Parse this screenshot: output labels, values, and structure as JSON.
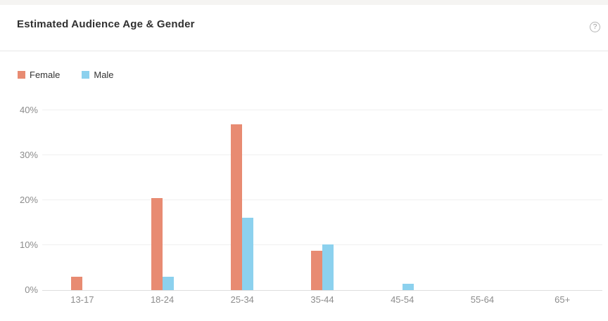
{
  "card": {
    "title": "Estimated Audience Age & Gender",
    "help_icon_glyph": "?"
  },
  "chart_data": {
    "type": "bar",
    "title": "Estimated Audience Age & Gender",
    "categories": [
      "13-17",
      "18-24",
      "25-34",
      "35-44",
      "45-54",
      "55-64",
      "65+"
    ],
    "series": [
      {
        "name": "Female",
        "color": "#E88B72",
        "values": [
          2.9,
          20.5,
          36.8,
          8.7,
          0,
          0,
          0
        ]
      },
      {
        "name": "Male",
        "color": "#8CD1EE",
        "values": [
          0,
          2.9,
          16.1,
          10.2,
          1.4,
          0,
          0
        ]
      }
    ],
    "xlabel": "",
    "ylabel": "",
    "ylim": [
      0,
      40
    ],
    "yticks": [
      0,
      10,
      20,
      30,
      40
    ],
    "ytick_suffix": "%",
    "grid": true,
    "legend_position": "top-left",
    "bar_layout": "grouped-adjacent"
  }
}
